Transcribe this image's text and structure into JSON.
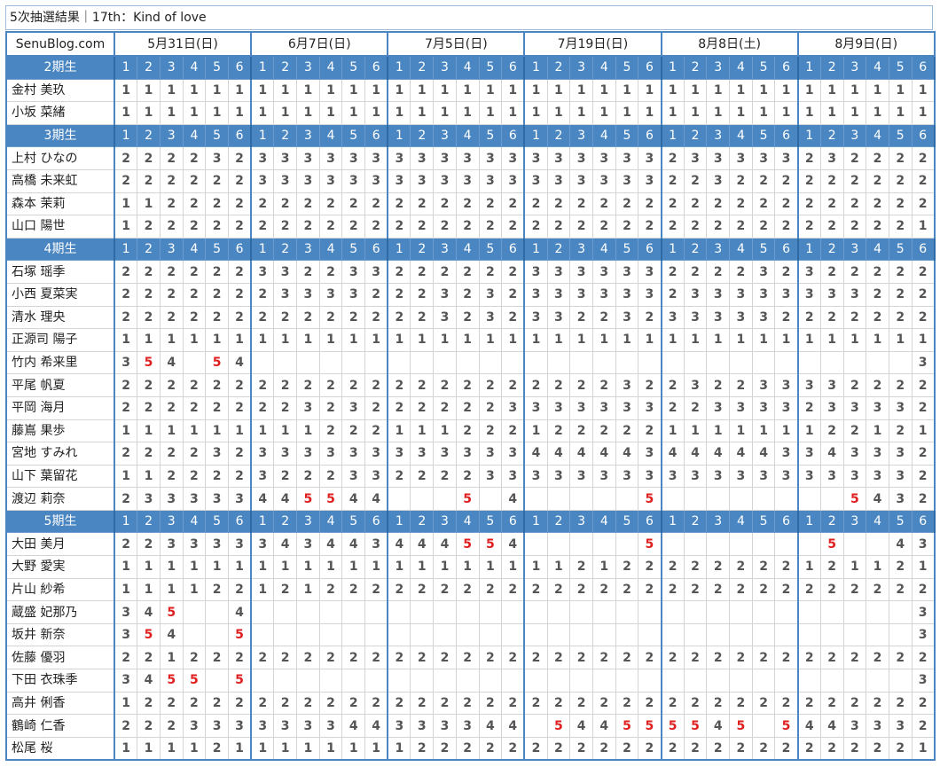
{
  "header": {
    "title": "5次抽選結果｜17th：Kind of love",
    "site": "SenuBlog.com"
  },
  "dates": [
    "5月31日(日)",
    "6月7日(日)",
    "7月5日(日)",
    "7月19日(日)",
    "8月8日(土)",
    "8月9日(日)"
  ],
  "slots": [
    1,
    2,
    3,
    4,
    5,
    6
  ],
  "groups": [
    {
      "name": "2期生",
      "members": [
        {
          "name": "金村 美玖",
          "results": [
            1,
            1,
            1,
            1,
            1,
            1,
            1,
            1,
            1,
            1,
            1,
            1,
            1,
            1,
            1,
            1,
            1,
            1,
            1,
            1,
            1,
            1,
            1,
            1,
            1,
            1,
            1,
            1,
            1,
            1,
            1,
            1,
            1,
            1,
            1,
            1
          ]
        },
        {
          "name": "小坂 菜緒",
          "results": [
            1,
            1,
            1,
            1,
            1,
            1,
            1,
            1,
            1,
            1,
            1,
            1,
            1,
            1,
            1,
            1,
            1,
            1,
            1,
            1,
            1,
            1,
            1,
            1,
            1,
            1,
            1,
            1,
            1,
            1,
            1,
            1,
            1,
            1,
            1,
            1
          ]
        }
      ]
    },
    {
      "name": "3期生",
      "members": [
        {
          "name": "上村 ひなの",
          "results": [
            2,
            2,
            2,
            2,
            3,
            2,
            3,
            3,
            3,
            3,
            3,
            3,
            3,
            3,
            3,
            3,
            3,
            3,
            3,
            3,
            3,
            3,
            3,
            3,
            2,
            3,
            3,
            3,
            3,
            3,
            2,
            3,
            2,
            2,
            2,
            2
          ]
        },
        {
          "name": "高橋 未来虹",
          "results": [
            2,
            2,
            2,
            2,
            2,
            2,
            3,
            3,
            3,
            3,
            3,
            3,
            3,
            3,
            3,
            3,
            3,
            3,
            3,
            3,
            3,
            3,
            3,
            3,
            2,
            2,
            3,
            2,
            2,
            2,
            2,
            2,
            2,
            2,
            2,
            2
          ]
        },
        {
          "name": "森本 茉莉",
          "results": [
            1,
            1,
            2,
            2,
            2,
            2,
            2,
            2,
            2,
            2,
            2,
            2,
            2,
            2,
            2,
            2,
            2,
            2,
            2,
            2,
            2,
            2,
            2,
            2,
            2,
            2,
            2,
            2,
            2,
            2,
            2,
            2,
            2,
            2,
            2,
            2
          ]
        },
        {
          "name": "山口 陽世",
          "results": [
            1,
            2,
            2,
            2,
            2,
            2,
            2,
            2,
            2,
            2,
            2,
            2,
            2,
            2,
            2,
            2,
            2,
            2,
            2,
            2,
            2,
            2,
            2,
            2,
            2,
            2,
            2,
            2,
            2,
            2,
            2,
            2,
            2,
            2,
            2,
            1
          ]
        }
      ]
    },
    {
      "name": "4期生",
      "members": [
        {
          "name": "石塚 瑶季",
          "results": [
            2,
            2,
            2,
            2,
            2,
            2,
            3,
            3,
            2,
            2,
            3,
            3,
            2,
            2,
            2,
            2,
            2,
            2,
            3,
            3,
            3,
            3,
            3,
            3,
            2,
            2,
            2,
            2,
            3,
            2,
            3,
            2,
            2,
            2,
            2,
            2
          ]
        },
        {
          "name": "小西 夏菜実",
          "results": [
            2,
            2,
            2,
            2,
            2,
            2,
            2,
            3,
            3,
            3,
            3,
            2,
            2,
            2,
            3,
            2,
            3,
            2,
            3,
            3,
            3,
            3,
            3,
            3,
            2,
            3,
            3,
            3,
            3,
            3,
            3,
            3,
            3,
            2,
            2,
            2
          ]
        },
        {
          "name": "清水 理央",
          "results": [
            2,
            2,
            2,
            2,
            2,
            2,
            2,
            2,
            2,
            2,
            2,
            2,
            2,
            2,
            3,
            2,
            3,
            2,
            3,
            3,
            2,
            2,
            3,
            2,
            3,
            3,
            3,
            3,
            3,
            2,
            2,
            2,
            2,
            2,
            2,
            2
          ]
        },
        {
          "name": "正源司 陽子",
          "results": [
            1,
            1,
            1,
            1,
            1,
            1,
            1,
            1,
            1,
            1,
            1,
            1,
            1,
            1,
            1,
            1,
            1,
            1,
            1,
            1,
            1,
            1,
            1,
            1,
            1,
            1,
            1,
            1,
            1,
            1,
            1,
            1,
            1,
            1,
            1,
            1
          ]
        },
        {
          "name": "竹内 希来里",
          "results": [
            3,
            5,
            4,
            null,
            5,
            4,
            null,
            null,
            null,
            null,
            null,
            null,
            null,
            null,
            null,
            null,
            null,
            null,
            null,
            null,
            null,
            null,
            null,
            null,
            null,
            null,
            null,
            null,
            null,
            null,
            null,
            null,
            null,
            null,
            null,
            3
          ]
        },
        {
          "name": "平尾 帆夏",
          "results": [
            2,
            2,
            2,
            2,
            2,
            2,
            2,
            2,
            2,
            2,
            2,
            2,
            2,
            2,
            2,
            2,
            2,
            2,
            2,
            2,
            2,
            2,
            3,
            2,
            2,
            3,
            2,
            2,
            3,
            3,
            3,
            3,
            2,
            2,
            2,
            2
          ]
        },
        {
          "name": "平岡 海月",
          "results": [
            2,
            2,
            2,
            2,
            2,
            2,
            2,
            2,
            3,
            2,
            3,
            2,
            2,
            2,
            2,
            2,
            2,
            3,
            3,
            3,
            3,
            3,
            3,
            3,
            2,
            2,
            3,
            3,
            3,
            3,
            2,
            3,
            3,
            3,
            3,
            2
          ]
        },
        {
          "name": "藤嶌 果歩",
          "results": [
            1,
            1,
            1,
            1,
            1,
            1,
            1,
            1,
            1,
            2,
            2,
            2,
            1,
            1,
            1,
            2,
            2,
            2,
            1,
            2,
            2,
            2,
            2,
            2,
            1,
            1,
            1,
            1,
            1,
            1,
            1,
            2,
            2,
            1,
            2,
            1
          ]
        },
        {
          "name": "宮地 すみれ",
          "results": [
            2,
            2,
            2,
            2,
            3,
            2,
            3,
            3,
            3,
            3,
            3,
            3,
            3,
            3,
            3,
            3,
            3,
            3,
            4,
            4,
            4,
            4,
            4,
            3,
            4,
            4,
            4,
            4,
            4,
            3,
            3,
            4,
            3,
            3,
            3,
            2
          ]
        },
        {
          "name": "山下 葉留花",
          "results": [
            1,
            1,
            2,
            2,
            2,
            2,
            3,
            2,
            2,
            2,
            3,
            3,
            2,
            2,
            2,
            2,
            3,
            3,
            3,
            3,
            3,
            3,
            3,
            3,
            3,
            3,
            3,
            3,
            3,
            3,
            3,
            3,
            3,
            3,
            3,
            2
          ]
        },
        {
          "name": "渡辺 莉奈",
          "results": [
            2,
            3,
            3,
            3,
            3,
            3,
            4,
            4,
            5,
            5,
            4,
            4,
            null,
            null,
            null,
            5,
            null,
            4,
            null,
            null,
            null,
            null,
            null,
            5,
            null,
            null,
            null,
            null,
            null,
            null,
            null,
            null,
            5,
            4,
            3,
            2
          ]
        }
      ]
    },
    {
      "name": "5期生",
      "members": [
        {
          "name": "大田 美月",
          "results": [
            2,
            2,
            3,
            3,
            3,
            3,
            3,
            4,
            3,
            4,
            4,
            3,
            4,
            4,
            4,
            5,
            5,
            4,
            null,
            null,
            null,
            null,
            null,
            5,
            null,
            null,
            null,
            null,
            null,
            null,
            null,
            5,
            null,
            null,
            4,
            3
          ]
        },
        {
          "name": "大野 愛実",
          "results": [
            1,
            1,
            1,
            1,
            1,
            1,
            1,
            1,
            1,
            1,
            1,
            1,
            1,
            1,
            1,
            1,
            1,
            1,
            1,
            1,
            2,
            1,
            2,
            2,
            2,
            2,
            2,
            2,
            2,
            2,
            1,
            2,
            1,
            1,
            2,
            1
          ]
        },
        {
          "name": "片山 紗希",
          "results": [
            1,
            1,
            1,
            1,
            2,
            2,
            1,
            2,
            1,
            2,
            2,
            2,
            2,
            2,
            2,
            2,
            2,
            2,
            2,
            2,
            2,
            2,
            2,
            2,
            2,
            2,
            2,
            2,
            2,
            2,
            2,
            2,
            2,
            2,
            2,
            2
          ]
        },
        {
          "name": "蔵盛 妃那乃",
          "results": [
            3,
            4,
            5,
            null,
            null,
            4,
            null,
            null,
            null,
            null,
            null,
            null,
            null,
            null,
            null,
            null,
            null,
            null,
            null,
            null,
            null,
            null,
            null,
            null,
            null,
            null,
            null,
            null,
            null,
            null,
            null,
            null,
            null,
            null,
            null,
            3
          ]
        },
        {
          "name": "坂井 新奈",
          "results": [
            3,
            5,
            4,
            null,
            null,
            5,
            null,
            null,
            null,
            null,
            null,
            null,
            null,
            null,
            null,
            null,
            null,
            null,
            null,
            null,
            null,
            null,
            null,
            null,
            null,
            null,
            null,
            null,
            null,
            null,
            null,
            null,
            null,
            null,
            null,
            3
          ]
        },
        {
          "name": "佐藤 優羽",
          "results": [
            2,
            2,
            1,
            2,
            2,
            2,
            2,
            2,
            2,
            2,
            2,
            2,
            2,
            2,
            2,
            2,
            2,
            2,
            2,
            2,
            2,
            2,
            2,
            2,
            2,
            2,
            2,
            2,
            2,
            2,
            2,
            2,
            2,
            2,
            2,
            2
          ]
        },
        {
          "name": "下田 衣珠季",
          "results": [
            3,
            4,
            5,
            5,
            null,
            5,
            null,
            null,
            null,
            null,
            null,
            null,
            null,
            null,
            null,
            null,
            null,
            null,
            null,
            null,
            null,
            null,
            null,
            null,
            null,
            null,
            null,
            null,
            null,
            null,
            null,
            null,
            null,
            null,
            null,
            3
          ]
        },
        {
          "name": "高井 俐香",
          "results": [
            1,
            2,
            2,
            2,
            2,
            2,
            2,
            2,
            2,
            2,
            2,
            2,
            2,
            2,
            2,
            2,
            2,
            2,
            2,
            2,
            2,
            2,
            2,
            2,
            2,
            2,
            2,
            2,
            2,
            2,
            2,
            2,
            2,
            2,
            2,
            2
          ]
        },
        {
          "name": "鶴崎 仁香",
          "results": [
            2,
            2,
            2,
            3,
            3,
            3,
            3,
            3,
            3,
            3,
            4,
            4,
            3,
            3,
            3,
            3,
            4,
            4,
            null,
            5,
            4,
            4,
            5,
            5,
            5,
            5,
            4,
            5,
            null,
            5,
            4,
            4,
            3,
            3,
            3,
            2
          ]
        },
        {
          "name": "松尾 桜",
          "results": [
            1,
            1,
            1,
            1,
            2,
            1,
            1,
            1,
            1,
            1,
            1,
            1,
            1,
            2,
            2,
            2,
            2,
            2,
            2,
            2,
            2,
            2,
            2,
            2,
            2,
            2,
            2,
            2,
            2,
            2,
            2,
            2,
            2,
            2,
            2,
            1
          ]
        }
      ]
    }
  ]
}
